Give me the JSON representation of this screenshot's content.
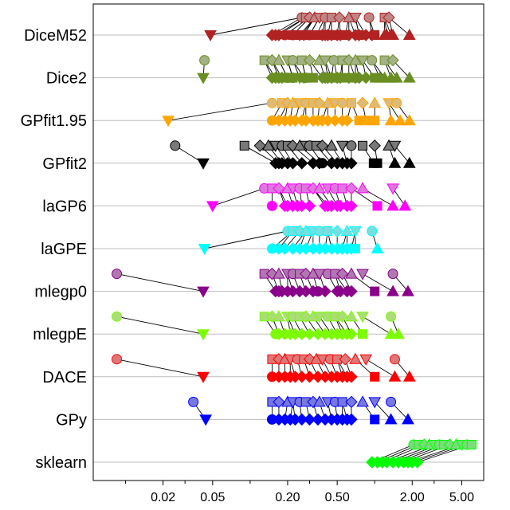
{
  "chart_data": {
    "type": "scatter",
    "title": "",
    "xlabel": "",
    "ylabel": "",
    "x_scale": "log",
    "xlim": [
      0.0055,
      7.5
    ],
    "x_ticks": [
      0.02,
      0.05,
      0.2,
      0.5,
      2.0,
      5.0
    ],
    "x_tick_labels": [
      "0.02",
      "0.05",
      "0.20",
      "0.50",
      "2.00",
      "5.00"
    ],
    "grid": "horizontal",
    "categories": [
      "DiceM52",
      "Dice2",
      "GPfit1.95",
      "GPfit2",
      "laGP6",
      "laGPE",
      "mlegp0",
      "mlegpE",
      "DACE",
      "GPy",
      "sklearn"
    ],
    "series": [
      {
        "category": "DiceM52",
        "color": "#b22222",
        "marker_values": {
          "circle": [
            0.19,
            0.22,
            0.3
          ],
          "square": [
            0.22,
            0.26,
            0.3,
            0.34,
            0.45,
            0.58,
            0.75,
            1.0
          ],
          "diamond": [
            0.15,
            0.16,
            0.17,
            0.38,
            0.4,
            0.42,
            0.45,
            0.5,
            0.53,
            0.62,
            0.7,
            0.75,
            0.85,
            0.95
          ],
          "triangle_up": [
            1.2,
            1.25,
            1.35,
            1.4,
            1.9
          ],
          "triangle_down": [
            0.048,
            0.25,
            0.27
          ]
        },
        "upper_values": [
          0.26,
          0.28,
          0.3,
          0.33,
          0.36,
          0.4,
          0.45,
          0.52,
          0.62,
          0.7,
          0.9,
          1.2,
          1.3
        ]
      },
      {
        "category": "Dice2",
        "color": "#6b8e23",
        "marker_values": {
          "circle": [
            0.2,
            0.22,
            0.28
          ],
          "square": [
            0.2,
            0.22,
            0.28,
            0.32,
            0.45,
            0.55,
            0.7,
            1.0
          ],
          "diamond": [
            0.15,
            0.16,
            0.17,
            0.18,
            0.38,
            0.4,
            0.42,
            0.45,
            0.5,
            0.53,
            0.62,
            0.7,
            0.75,
            0.85
          ],
          "triangle_up": [
            1.1,
            1.2,
            1.35,
            1.5,
            1.9
          ],
          "triangle_down": [
            0.042,
            0.25,
            0.27
          ]
        },
        "upper_values": [
          0.043,
          0.13,
          0.15,
          0.17,
          0.2,
          0.22,
          0.26,
          0.3,
          0.36,
          0.4,
          0.47,
          0.55,
          0.62,
          0.7,
          0.8,
          0.95,
          1.2,
          1.4
        ]
      },
      {
        "category": "GPfit1.95",
        "color": "#ffa500",
        "marker_values": {
          "circle": [
            0.15
          ],
          "square": [
            0.75,
            0.85,
            1.0
          ],
          "diamond": [
            0.17,
            0.19,
            0.21,
            0.23,
            0.26,
            0.28,
            0.32,
            0.35,
            0.38,
            0.42,
            0.48,
            0.55,
            0.6
          ],
          "triangle_up": [
            1.35,
            1.6,
            1.9
          ],
          "triangle_down": [
            0.022
          ]
        },
        "upper_values": [
          0.15,
          0.18,
          0.2,
          0.22,
          0.25,
          0.28,
          0.32,
          0.36,
          0.42,
          0.48,
          0.55,
          0.65,
          0.8,
          1.0,
          1.3,
          1.5
        ]
      },
      {
        "category": "GPfit2",
        "color": "#000000",
        "marker_values": {
          "circle": [
            0.38
          ],
          "square": [
            0.98,
            1.05
          ],
          "diamond": [
            0.16,
            0.17,
            0.18,
            0.2,
            0.22,
            0.26,
            0.32,
            0.36,
            0.45,
            0.5,
            0.55,
            0.6,
            0.65
          ],
          "triangle_up": [
            1.45,
            1.9
          ],
          "triangle_down": [
            0.042
          ]
        },
        "upper_values": [
          0.025,
          0.09,
          0.12,
          0.14,
          0.16,
          0.18,
          0.2,
          0.22,
          0.25,
          0.28,
          0.3,
          0.34,
          0.38,
          0.45,
          0.55,
          0.65,
          0.8,
          1.0,
          1.3,
          1.45
        ]
      },
      {
        "category": "laGP6",
        "color": "#ff00ff",
        "marker_values": {
          "circle": [
            0.15
          ],
          "square": [
            1.05
          ],
          "diamond": [
            0.19,
            0.2,
            0.22,
            0.24,
            0.26,
            0.3,
            0.4,
            0.42,
            0.45,
            0.5,
            0.53,
            0.6,
            0.65
          ],
          "triangle_up": [
            1.4,
            1.75
          ],
          "triangle_down": [
            0.05
          ]
        },
        "upper_values": [
          0.13,
          0.15,
          0.17,
          0.2,
          0.22,
          0.25,
          0.28,
          0.32,
          0.36,
          0.42,
          0.48,
          0.55,
          0.65,
          0.8,
          1.4
        ]
      },
      {
        "category": "laGPE",
        "color": "#00ffff",
        "marker_values": {
          "circle": [
            0.15
          ],
          "square": [
            0.7
          ],
          "diamond": [
            0.17,
            0.19,
            0.22,
            0.25,
            0.28,
            0.32,
            0.36,
            0.4,
            0.45,
            0.5,
            0.55,
            0.6,
            0.65
          ],
          "triangle_up": [
            1.05
          ],
          "triangle_down": [
            0.043
          ]
        },
        "upper_values": [
          0.2,
          0.22,
          0.25,
          0.28,
          0.32,
          0.36,
          0.42,
          0.5,
          0.6,
          0.7,
          0.95
        ]
      },
      {
        "category": "mlegp0",
        "color": "#8b008b",
        "marker_values": {
          "circle": [
            0.35
          ],
          "square": [
            1.0
          ],
          "diamond": [
            0.16,
            0.17,
            0.18,
            0.2,
            0.22,
            0.25,
            0.28,
            0.32,
            0.4,
            0.5,
            0.53,
            0.6,
            0.65
          ],
          "triangle_up": [
            1.4,
            1.85
          ],
          "triangle_down": [
            0.042
          ]
        },
        "upper_values": [
          0.0085,
          0.13,
          0.15,
          0.17,
          0.2,
          0.22,
          0.25,
          0.28,
          0.32,
          0.36,
          0.42,
          0.48,
          0.55,
          0.65,
          0.8,
          1.4
        ]
      },
      {
        "category": "mlegpE",
        "color": "#7cfc00",
        "marker_values": {
          "circle": [
            0.16
          ],
          "square": [
            0.8
          ],
          "diamond": [
            0.17,
            0.19,
            0.21,
            0.23,
            0.26,
            0.3,
            0.35,
            0.4,
            0.45,
            0.5,
            0.55,
            0.6,
            0.65
          ],
          "triangle_up": [
            1.35,
            1.55
          ],
          "triangle_down": [
            0.042
          ]
        },
        "upper_values": [
          0.0085,
          0.13,
          0.15,
          0.17,
          0.2,
          0.22,
          0.25,
          0.28,
          0.32,
          0.36,
          0.42,
          0.48,
          0.55,
          0.65,
          0.8,
          1.35
        ]
      },
      {
        "category": "DACE",
        "color": "#ff0000",
        "marker_values": {
          "circle": [
            0.15
          ],
          "square": [
            1.0
          ],
          "diamond": [
            0.17,
            0.19,
            0.21,
            0.23,
            0.26,
            0.3,
            0.35,
            0.4,
            0.45,
            0.5,
            0.55,
            0.6,
            0.65
          ],
          "triangle_up": [
            1.45,
            1.9
          ],
          "triangle_down": [
            0.042
          ]
        },
        "upper_values": [
          0.0085,
          0.15,
          0.17,
          0.19,
          0.21,
          0.24,
          0.27,
          0.3,
          0.34,
          0.38,
          0.44,
          0.5,
          0.58,
          0.7,
          0.85,
          1.45
        ]
      },
      {
        "category": "GPy",
        "color": "#0000ff",
        "marker_values": {
          "circle": [
            0.15
          ],
          "square": [
            1.0
          ],
          "diamond": [
            0.17,
            0.19,
            0.21,
            0.23,
            0.26,
            0.3,
            0.35,
            0.4,
            0.45,
            0.5,
            0.55,
            0.6,
            0.65
          ],
          "triangle_up": [
            1.35,
            1.85
          ],
          "triangle_down": [
            0.044
          ]
        },
        "upper_values": [
          0.035,
          0.15,
          0.17,
          0.2,
          0.22,
          0.25,
          0.28,
          0.32,
          0.36,
          0.42,
          0.48,
          0.55,
          0.65,
          0.8,
          1.0,
          1.35
        ]
      },
      {
        "category": "sklearn",
        "color": "#00ff00",
        "marker_values": {
          "circle": [],
          "square": [],
          "diamond": [
            0.95,
            1.05,
            1.15,
            1.25,
            1.4,
            1.55,
            1.7,
            1.85,
            2.0,
            2.2
          ],
          "triangle_up": [],
          "triangle_down": []
        },
        "upper_values": [
          2.05,
          2.25,
          2.5,
          2.75,
          3.0,
          3.3,
          3.6,
          4.0,
          4.5,
          5.0,
          5.5,
          6.0
        ]
      }
    ]
  }
}
